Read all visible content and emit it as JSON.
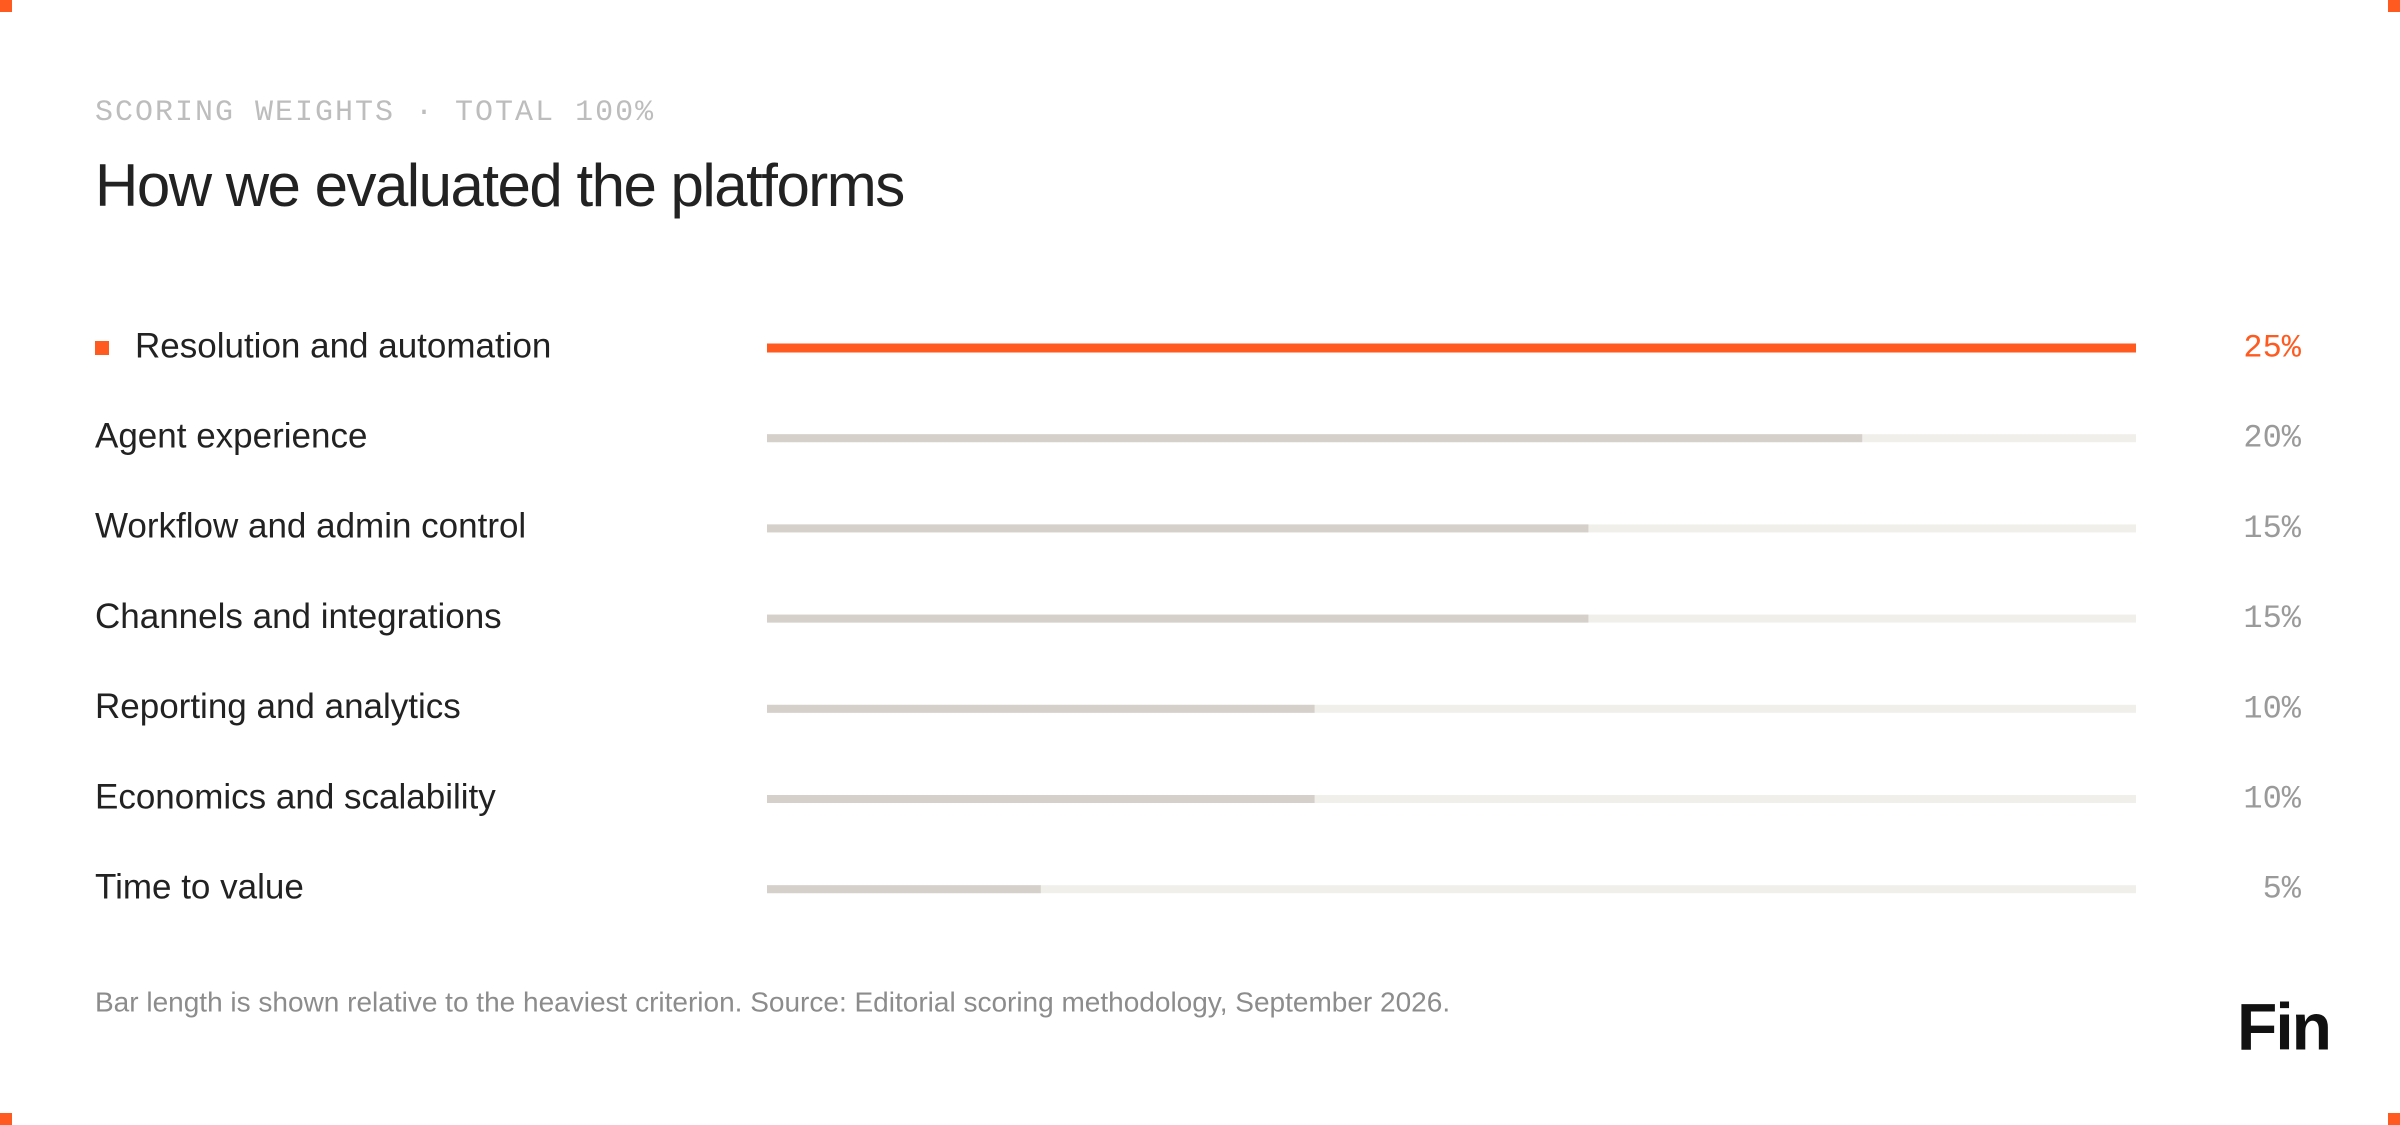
{
  "chart_data": {
    "type": "hbar",
    "eyebrow": "SCORING WEIGHTS · TOTAL 100%",
    "title": "How we evaluated the platforms",
    "categories": [
      "Resolution and automation",
      "Agent experience",
      "Workflow and admin control",
      "Channels and integrations",
      "Reporting and analytics",
      "Economics and scalability",
      "Time to value"
    ],
    "values": [
      25,
      20,
      15,
      15,
      10,
      10,
      5
    ],
    "value_labels": [
      "25%",
      "20%",
      "15%",
      "15%",
      "10%",
      "10%",
      "5%"
    ],
    "color": "#d5d0ca",
    "track_color": "#f0efea",
    "highlight_index": 0,
    "highlight_color": "#ff5a1f",
    "note": "Bar length is shown relative to the heaviest criterion. Source: Editorial scoring methodology, September 2026.",
    "logo": "Fin"
  }
}
